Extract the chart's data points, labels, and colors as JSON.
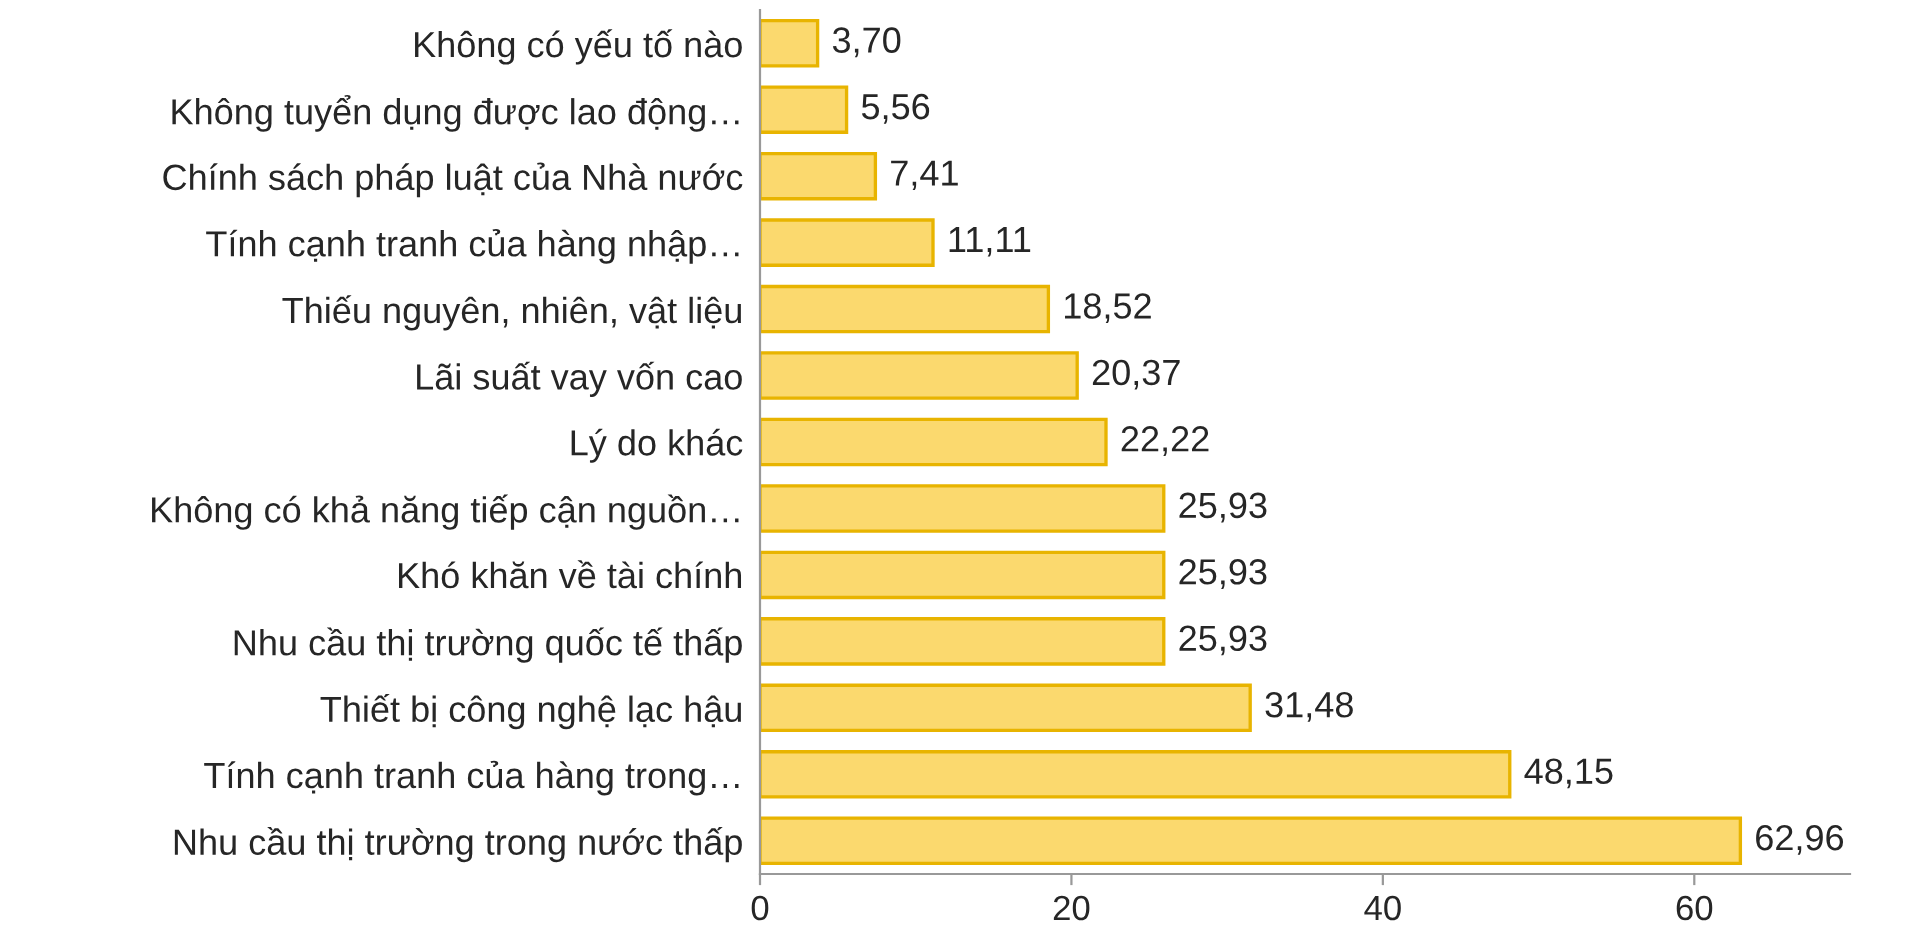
{
  "chart_data": {
    "type": "bar",
    "orientation": "horizontal",
    "categories": [
      "Không có yếu tố nào",
      "Không tuyển dụng được lao động…",
      "Chính sách pháp luật của Nhà nước",
      "Tính cạnh tranh của hàng nhập…",
      "Thiếu nguyên, nhiên, vật liệu",
      "Lãi suất vay vốn cao",
      "Lý do khác",
      "Không có khả năng tiếp cận nguồn…",
      "Khó khăn về tài chính",
      "Nhu cầu thị trường quốc tế thấp",
      "Thiết bị công nghệ lạc hậu",
      "Tính cạnh tranh của hàng trong…",
      "Nhu cầu thị trường trong nước thấp"
    ],
    "values": [
      3.7,
      5.56,
      7.41,
      11.11,
      18.52,
      20.37,
      22.22,
      25.93,
      25.93,
      25.93,
      31.48,
      48.15,
      62.96
    ],
    "value_labels": [
      "3,70",
      "5,56",
      "7,41",
      "11,11",
      "18,52",
      "20,37",
      "22,22",
      "25,93",
      "25,93",
      "25,93",
      "31,48",
      "48,15",
      "62,96"
    ],
    "color": "#fbd96e",
    "xlim": [
      0,
      70
    ],
    "xticks": [
      0,
      20,
      40,
      60
    ],
    "grid": false,
    "legend": false
  }
}
